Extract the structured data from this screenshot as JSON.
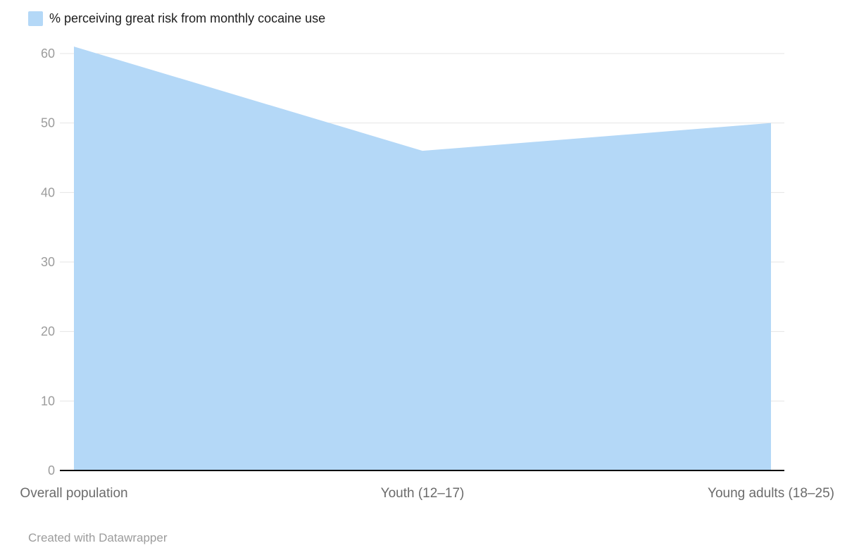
{
  "legend": {
    "swatch_color": "#b4d8f7",
    "label": "% perceiving great risk from monthly cocaine use"
  },
  "footer": {
    "credit": "Created with Datawrapper"
  },
  "chart_data": {
    "type": "area",
    "title": "% perceiving great risk from monthly cocaine use",
    "categories": [
      "Overall population",
      "Youth (12–17)",
      "Young adults (18–25)"
    ],
    "values": [
      61,
      46,
      50
    ],
    "series": [
      {
        "name": "% perceiving great risk from monthly cocaine use",
        "values": [
          61,
          46,
          50
        ]
      }
    ],
    "xlabel": "",
    "ylabel": "",
    "ylim": [
      0,
      60
    ],
    "yticks": [
      0,
      10,
      20,
      30,
      40,
      50,
      60
    ],
    "grid": true,
    "legend_position": "top-left",
    "area_color": "#b4d8f7",
    "gridline_color": "#e4e4e4",
    "baseline_color": "#000000",
    "tick_label_color": "#9c9c9c",
    "category_label_color": "#6b6b6b"
  }
}
